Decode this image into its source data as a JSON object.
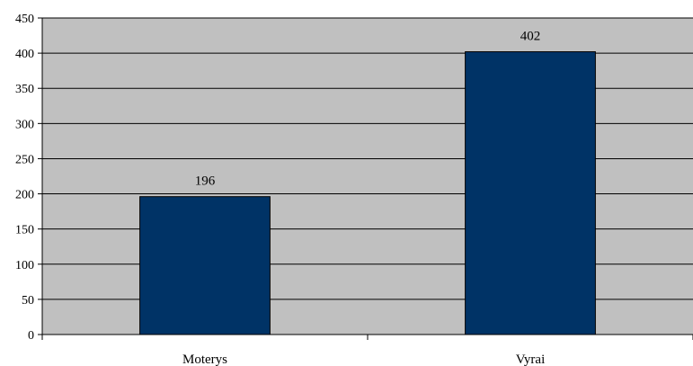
{
  "chart_data": {
    "type": "bar",
    "categories": [
      "Moterys",
      "Vyrai"
    ],
    "values": [
      196,
      402
    ],
    "data_labels": [
      "196",
      "402"
    ],
    "y_ticks": [
      "0",
      "50",
      "100",
      "150",
      "200",
      "250",
      "300",
      "350",
      "400",
      "450"
    ],
    "ylim": [
      0,
      450
    ],
    "y_tick_step": 50,
    "grid": true,
    "legend": "none",
    "colors": {
      "plot_background": "#c0c0c0",
      "bar_fill": "#003366",
      "bar_stroke": "#000000",
      "gridline": "#000000",
      "axis": "#000000"
    }
  }
}
